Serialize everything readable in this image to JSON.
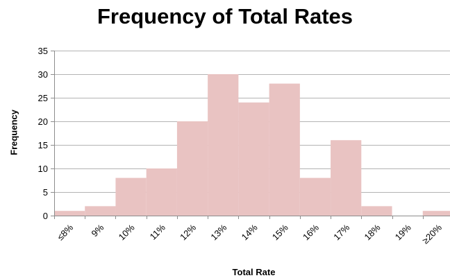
{
  "chart_data": {
    "type": "bar",
    "title": "Frequency of Total Rates",
    "xlabel": "Total Rate",
    "ylabel": "Frequency",
    "categories": [
      "≤8%",
      "9%",
      "10%",
      "11%",
      "12%",
      "13%",
      "14%",
      "15%",
      "16%",
      "17%",
      "18%",
      "19%",
      "≥20%"
    ],
    "values": [
      1,
      2,
      8,
      10,
      20,
      30,
      24,
      28,
      8,
      16,
      2,
      0,
      1
    ],
    "ylim": [
      0,
      35
    ],
    "yticks": [
      "0",
      "5",
      "10",
      "15",
      "20",
      "25",
      "30",
      "35"
    ],
    "grid": true,
    "legend": "none",
    "bar_color": "#e9c3c2",
    "grid_color": "#b3b3b3",
    "axis_color": "#8c8c8c"
  }
}
